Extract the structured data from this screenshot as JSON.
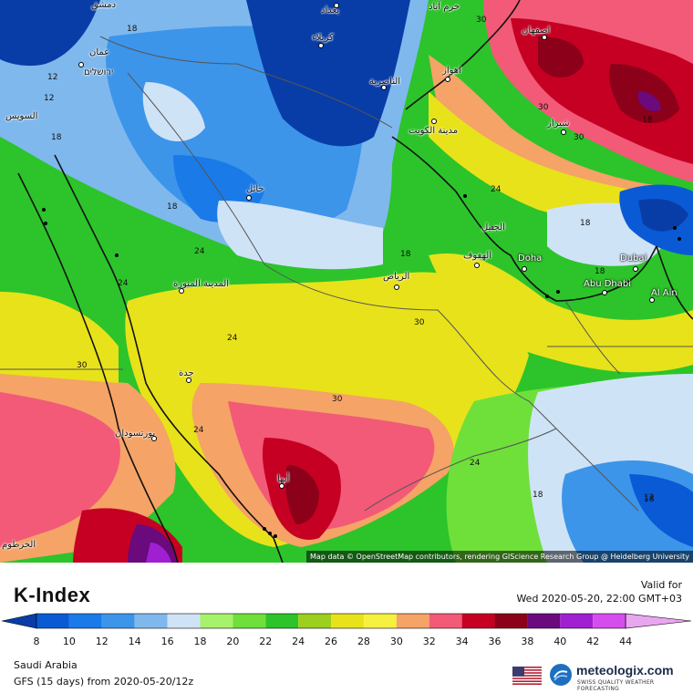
{
  "map": {
    "attribution": "Map data © OpenStreetMap contributors, rendering GIScience Research Group @ Heidelberg University",
    "cities": [
      {
        "id": "baghdad",
        "label": "بغداد"
      },
      {
        "id": "karbala",
        "label": "كربلاء"
      },
      {
        "id": "amman",
        "label": "عمان"
      },
      {
        "id": "jerusalem",
        "label": "ירושלים"
      },
      {
        "id": "damascus",
        "label": "دمشق"
      },
      {
        "id": "basra",
        "label": "الناصرية"
      },
      {
        "id": "ahvaz",
        "label": "اهواز"
      },
      {
        "id": "isfahan",
        "label": "اصفهان"
      },
      {
        "id": "shiraz",
        "label": "شیراز"
      },
      {
        "id": "kuwait",
        "label": "مدينة الكويت"
      },
      {
        "id": "hail",
        "label": "حائل"
      },
      {
        "id": "suez",
        "label": "السويس"
      },
      {
        "id": "medina",
        "label": "المدينة المنورة"
      },
      {
        "id": "riyadh",
        "label": "الرياض"
      },
      {
        "id": "hofuf",
        "label": "الهفوف"
      },
      {
        "id": "jubail",
        "label": "الجبيل"
      },
      {
        "id": "doha",
        "label": "Doha"
      },
      {
        "id": "dubai",
        "label": "Dubai"
      },
      {
        "id": "abudhabi",
        "label": "Abu Dhabi"
      },
      {
        "id": "alain",
        "label": "Al Ain"
      },
      {
        "id": "jeddah",
        "label": "جدة"
      },
      {
        "id": "portsudan",
        "label": "بورتسودان"
      },
      {
        "id": "abha",
        "label": "أبها"
      },
      {
        "id": "khartoum",
        "label": "الخرطوم"
      },
      {
        "id": "khorramabad",
        "label": "خرم آباد"
      }
    ],
    "contour_labels": [
      "18",
      "12",
      "12",
      "18",
      "18",
      "24",
      "24",
      "24",
      "30",
      "30",
      "30",
      "18",
      "24",
      "18",
      "18",
      "18",
      "30",
      "30",
      "24",
      "24",
      "18",
      "12",
      "30",
      "18"
    ]
  },
  "legend": {
    "title": "K-Index",
    "valid_label": "Valid for",
    "valid_date": "Wed 2020-05-20, 22:00 GMT+03",
    "ticks": [
      "8",
      "10",
      "12",
      "14",
      "16",
      "18",
      "20",
      "22",
      "24",
      "26",
      "28",
      "30",
      "32",
      "34",
      "36",
      "38",
      "40",
      "42",
      "44"
    ],
    "colors": [
      "#083da8",
      "#0a5ad6",
      "#1a7ae8",
      "#3d95ea",
      "#7fb8ec",
      "#cfe3f6",
      "#a6f26a",
      "#6fe03a",
      "#2cc42a",
      "#9ccf1e",
      "#e8e21a",
      "#f6f040",
      "#f5a366",
      "#f25a78",
      "#c60023",
      "#8c0019",
      "#6a0a7c",
      "#a01fd2",
      "#d54ded",
      "#e9a6f0"
    ],
    "region": "Saudi Arabia",
    "model": "GFS (15 days) from  2020-05-20/12z",
    "brand_name": "meteologix.com",
    "brand_tagline": "SWISS QUALITY WEATHER FORECASTING",
    "flag_icon": "us-flag-icon"
  }
}
